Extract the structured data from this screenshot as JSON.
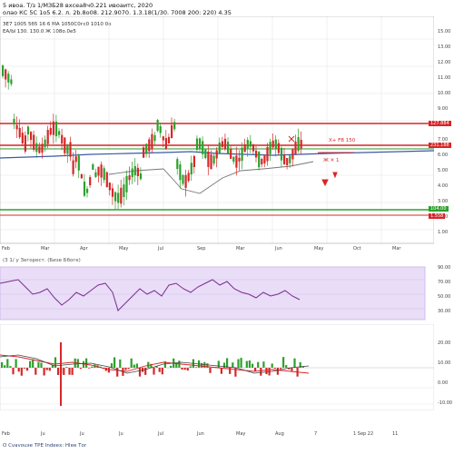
{
  "header": {
    "line1": "5 ивоа. Т/з 1/МЗБ28 вхсеа8ч0.221 ивоаитс, 2020",
    "line2": "олао КС 5С 1о5 6.2. л. 2b.8о08. 212.9070. 1.3.18(1/30. 7008 200: 220) 4.35",
    "ind_line1": "ЗЕ7 1005 5б5 16 6 МА 1050С0гс0 1010 0о",
    "ind_line2": "ЕА/Ы 130. 130.0 Ж 108о.0е5"
  },
  "price_axis": {
    "ticks": [
      "15.00",
      "13.00",
      "12.00",
      "11.00",
      "10.00",
      "9.00",
      "8.00",
      "7.00",
      "6.00",
      "5.00",
      "4.00",
      "3.00",
      "2.00",
      "1.00"
    ]
  },
  "price_tags": [
    {
      "label": "127.884",
      "color": "#d62728"
    },
    {
      "label": "231.188",
      "color": "#d62728"
    },
    {
      "label": "104.00",
      "color": "#2ca02c"
    },
    {
      "label": "1.558",
      "color": "#d62728"
    }
  ],
  "time_axis": {
    "main": [
      "Feb",
      "Mar",
      "Apr",
      "May",
      "Jul",
      "Sep",
      "Mar",
      "Jun",
      "May",
      "Oct",
      "Mar"
    ],
    "bottom": [
      "Feb",
      "Ju",
      "Ju",
      "Ju",
      "Jul",
      "Jun",
      "May",
      "Aug",
      "7",
      "1 Sep 22",
      "11"
    ]
  },
  "annotations": {
    "arrow_label_1": "Х+ FB 150",
    "arrow_label_2": "Ж ✕ 1"
  },
  "rsi": {
    "label": "(3 1/ у Зегорест. (Бизе Ббоге)",
    "ticks": [
      "90.00",
      "70.00",
      "50.00",
      "30.00"
    ]
  },
  "macd": {
    "ticks": [
      "20.00",
      "10.00",
      "0.00",
      "-10.00"
    ]
  },
  "footer": {
    "text": "О Сvаvоuэе ТРЕ Іndeeх: Нlee Тor"
  },
  "colors": {
    "up": "#2ca02c",
    "down": "#d62728",
    "ma": "#3b5aa6",
    "rsi_line": "#7b2d8e",
    "rsi_band": "#e9ddf7",
    "resistance": "#d62728",
    "support": "#2ca02c"
  }
}
